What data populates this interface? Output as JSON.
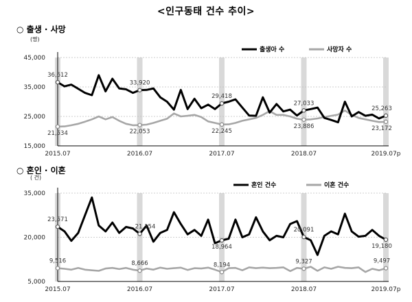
{
  "main_title": "<인구동태 건수 추이>",
  "chart_data": [
    {
      "type": "line",
      "section_title": "○ 출생 · 사망",
      "unit": "(명)",
      "ylim": [
        15000,
        45000
      ],
      "y_ticks": [
        "45,000",
        "35,000",
        "25,000",
        "15,000"
      ],
      "y_tick_values": [
        45000,
        35000,
        25000,
        15000
      ],
      "x_tick_labels": [
        "2015.07",
        "2016.07",
        "2017.07",
        "2018.07",
        "2019.07p"
      ],
      "legend_position": "top-right",
      "series": [
        {
          "name": "출생아 수",
          "color": "#000000",
          "values": [
            36612,
            35200,
            35800,
            34400,
            33000,
            32200,
            39000,
            33500,
            37800,
            34500,
            34200,
            33000,
            33920,
            34000,
            34500,
            31500,
            30000,
            27300,
            34000,
            27500,
            31000,
            27800,
            29000,
            27500,
            29418,
            30000,
            30800,
            28000,
            25300,
            25200,
            31500,
            26300,
            29200,
            26700,
            27300,
            25300,
            27033,
            27500,
            28000,
            24500,
            23800,
            23000,
            30000,
            25000,
            26500,
            25200,
            25600,
            24300,
            25263
          ]
        },
        {
          "name": "사망자 수",
          "color": "#a6a6a6",
          "values": [
            21534,
            21600,
            22000,
            22500,
            23200,
            24000,
            25000,
            24000,
            24800,
            23500,
            22500,
            22000,
            22053,
            22200,
            22800,
            23500,
            24200,
            26000,
            25000,
            25200,
            25500,
            24800,
            23300,
            22800,
            22245,
            22300,
            22800,
            23500,
            24000,
            24500,
            25500,
            26800,
            25500,
            25500,
            25000,
            24200,
            23886,
            24000,
            24300,
            24800,
            25200,
            25600,
            27000,
            25500,
            24500,
            24000,
            23500,
            23100,
            23172
          ]
        }
      ],
      "data_labels": [
        {
          "x_index": 0,
          "value": "36,612",
          "series": 0
        },
        {
          "x_index": 12,
          "value": "33,920",
          "series": 0
        },
        {
          "x_index": 24,
          "value": "29,418",
          "series": 0
        },
        {
          "x_index": 36,
          "value": "27,033",
          "series": 0
        },
        {
          "x_index": 48,
          "value": "25,263",
          "series": 0
        },
        {
          "x_index": 0,
          "value": "21,534",
          "series": 1
        },
        {
          "x_index": 12,
          "value": "22,053",
          "series": 1
        },
        {
          "x_index": 24,
          "value": "22,245",
          "series": 1
        },
        {
          "x_index": 36,
          "value": "23,886",
          "series": 1
        },
        {
          "x_index": 48,
          "value": "23,172",
          "series": 1
        }
      ]
    },
    {
      "type": "line",
      "section_title": "○ 혼인 · 이혼",
      "unit": "( 건)",
      "ylim": [
        5000,
        35000
      ],
      "y_ticks": [
        "35,000",
        "20,000",
        "5,000"
      ],
      "y_tick_values": [
        35000,
        20000,
        5000
      ],
      "x_tick_labels": [
        "2015.07",
        "2016.07",
        "2017.07",
        "2018.07",
        "2019.07p"
      ],
      "legend_position": "top-right",
      "series": [
        {
          "name": "혼인 건수",
          "color": "#000000",
          "values": [
            23571,
            22000,
            18800,
            21500,
            27500,
            33500,
            24000,
            22000,
            25000,
            21500,
            23500,
            23000,
            21154,
            24000,
            18500,
            21500,
            22500,
            28500,
            24500,
            21000,
            22500,
            20500,
            26000,
            18000,
            18964,
            19500,
            26000,
            20000,
            21000,
            26800,
            22000,
            19000,
            20500,
            20000,
            24500,
            25500,
            20091,
            19000,
            14000,
            20500,
            22000,
            21000,
            28000,
            22000,
            20200,
            20500,
            22500,
            20500,
            19180
          ]
        },
        {
          "name": "이혼 건수",
          "color": "#a6a6a6",
          "values": [
            9516,
            9300,
            9000,
            9600,
            9000,
            8800,
            8600,
            9400,
            9600,
            9200,
            9600,
            9000,
            8666,
            9400,
            9000,
            9700,
            9300,
            9500,
            9700,
            8900,
            9500,
            9400,
            9700,
            9000,
            8194,
            9500,
            9600,
            8800,
            9800,
            9500,
            9700,
            9500,
            9600,
            9800,
            8500,
            9600,
            9327,
            10000,
            8600,
            9800,
            9300,
            10000,
            9600,
            9500,
            9800,
            8200,
            9300,
            8800,
            9497
          ]
        }
      ],
      "data_labels": [
        {
          "x_index": 0,
          "value": "23,571",
          "series": 0
        },
        {
          "x_index": 12,
          "value": "21,154",
          "series": 0
        },
        {
          "x_index": 24,
          "value": "18,964",
          "series": 0
        },
        {
          "x_index": 36,
          "value": "20,091",
          "series": 0
        },
        {
          "x_index": 48,
          "value": "19,180",
          "series": 0
        },
        {
          "x_index": 0,
          "value": "9,516",
          "series": 1
        },
        {
          "x_index": 12,
          "value": "8,666",
          "series": 1
        },
        {
          "x_index": 24,
          "value": "8,194",
          "series": 1
        },
        {
          "x_index": 36,
          "value": "9,327",
          "series": 1
        },
        {
          "x_index": 48,
          "value": "9,497",
          "series": 1
        }
      ]
    }
  ]
}
